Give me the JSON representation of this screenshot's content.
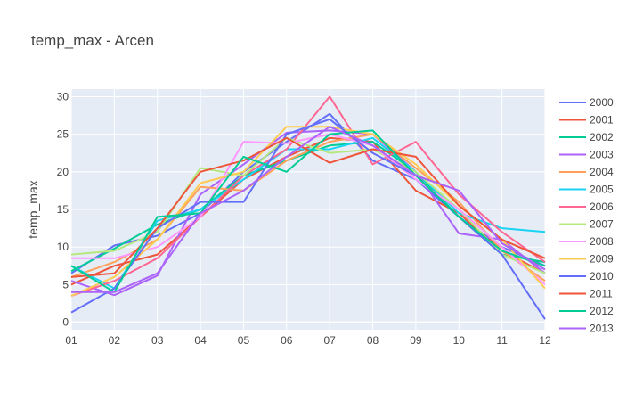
{
  "chart_data": {
    "type": "line",
    "title": "temp_max -  Arcen",
    "xlabel": "",
    "ylabel": "temp_max",
    "categories": [
      "01",
      "02",
      "03",
      "04",
      "05",
      "06",
      "07",
      "08",
      "09",
      "10",
      "11",
      "12"
    ],
    "ylim": [
      -1,
      31
    ],
    "yticks": [
      0,
      5,
      10,
      15,
      20,
      25,
      30
    ],
    "grid": true,
    "legend_position": "right",
    "plot_bg": "#e5ecf6",
    "series": [
      {
        "name": "2000",
        "color": "#636efa",
        "values": [
          6.5,
          10.2,
          11.5,
          14.5,
          20.0,
          24.0,
          27.7,
          21.5,
          19.0,
          14.0,
          10.0,
          7.5
        ]
      },
      {
        "name": "2001",
        "color": "#ef553b",
        "values": [
          5.0,
          7.5,
          9.0,
          14.0,
          19.0,
          22.0,
          24.5,
          24.0,
          17.5,
          14.5,
          9.5,
          6.5
        ]
      },
      {
        "name": "2002",
        "color": "#00cc96",
        "values": [
          6.8,
          9.8,
          13.0,
          15.0,
          19.5,
          21.5,
          23.5,
          24.0,
          20.0,
          14.0,
          9.0,
          8.0
        ]
      },
      {
        "name": "2003",
        "color": "#ab63fa",
        "values": [
          5.5,
          3.6,
          6.2,
          17.0,
          21.0,
          25.2,
          25.5,
          25.0,
          20.0,
          11.8,
          11.0,
          6.5
        ]
      },
      {
        "name": "2004",
        "color": "#ffa15a",
        "values": [
          6.0,
          8.0,
          11.0,
          18.0,
          17.5,
          21.5,
          24.0,
          25.0,
          20.5,
          16.0,
          9.5,
          5.5
        ]
      },
      {
        "name": "2005",
        "color": "#19d3f3",
        "values": [
          7.5,
          4.5,
          13.5,
          15.0,
          19.0,
          23.0,
          23.0,
          24.5,
          20.0,
          14.5,
          12.5,
          12.0
        ]
      },
      {
        "name": "2006",
        "color": "#ff6692",
        "values": [
          3.5,
          5.5,
          8.5,
          14.0,
          19.5,
          23.0,
          30.0,
          21.0,
          24.0,
          17.0,
          12.0,
          8.0
        ]
      },
      {
        "name": "2007",
        "color": "#b6e880",
        "values": [
          9.0,
          9.5,
          12.0,
          20.5,
          19.5,
          24.5,
          22.5,
          23.0,
          20.0,
          15.0,
          9.0,
          6.5
        ]
      },
      {
        "name": "2008",
        "color": "#ff97ff",
        "values": [
          8.5,
          8.5,
          10.0,
          14.0,
          24.0,
          23.8,
          25.0,
          23.5,
          19.0,
          15.0,
          10.0,
          5.0
        ]
      },
      {
        "name": "2009",
        "color": "#fecb52",
        "values": [
          3.5,
          6.0,
          11.0,
          18.5,
          20.0,
          26.0,
          26.0,
          25.0,
          21.0,
          15.5,
          11.0,
          4.5
        ]
      },
      {
        "name": "2010",
        "color": "#636efa",
        "values": [
          1.3,
          4.5,
          12.5,
          16.0,
          16.0,
          25.0,
          27.0,
          22.5,
          19.5,
          14.0,
          9.0,
          0.4
        ]
      },
      {
        "name": "2011",
        "color": "#ef553b",
        "values": [
          6.0,
          6.5,
          12.5,
          20.0,
          21.5,
          24.5,
          21.2,
          23.0,
          22.0,
          15.5,
          11.0,
          8.5
        ]
      },
      {
        "name": "2012",
        "color": "#00cc96",
        "values": [
          7.5,
          4.0,
          14.0,
          14.5,
          22.0,
          20.0,
          25.0,
          25.5,
          19.5,
          14.0,
          9.5,
          7.5
        ]
      },
      {
        "name": "2013",
        "color": "#ab63fa",
        "values": [
          4.0,
          4.0,
          6.5,
          14.5,
          17.5,
          22.0,
          26.0,
          23.5,
          19.5,
          17.5,
          10.5,
          7.0
        ]
      }
    ]
  }
}
